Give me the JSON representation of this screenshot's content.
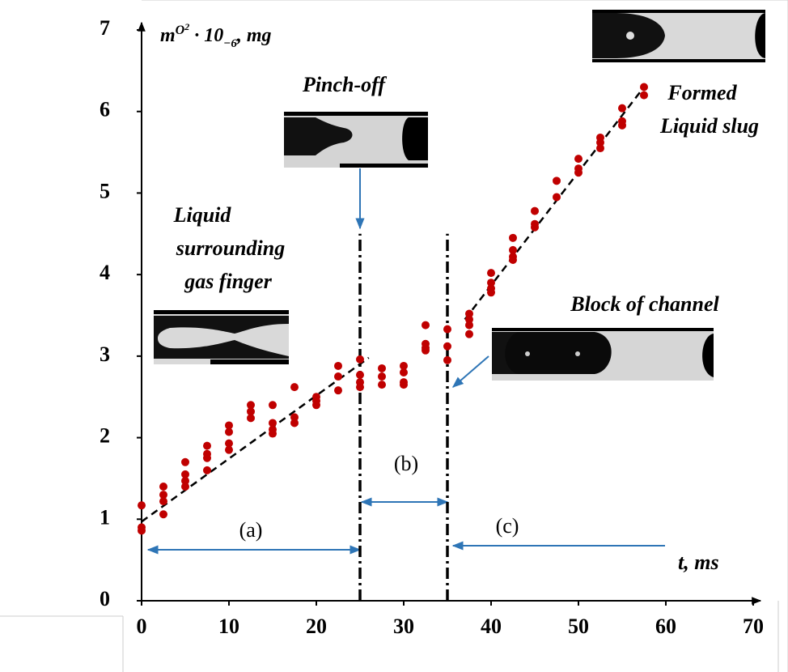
{
  "chart_data": {
    "type": "scatter",
    "ylabel_parts": [
      "m",
      "O",
      "2",
      " · 10",
      "−6",
      ", mg"
    ],
    "xlabel": "t, ms",
    "color": "#c00000",
    "x": [
      0,
      0,
      0,
      2.5,
      2.5,
      2.5,
      2.5,
      5,
      5,
      5,
      5,
      7.5,
      7.5,
      7.5,
      7.5,
      10,
      10,
      10,
      10,
      12.5,
      12.5,
      12.5,
      15,
      15,
      15,
      15,
      17.5,
      17.5,
      17.5,
      20,
      20,
      20,
      22.5,
      22.5,
      22.5,
      25,
      25,
      25,
      25,
      27.5,
      27.5,
      27.5,
      30,
      30,
      30,
      30,
      32.5,
      32.5,
      32.5,
      32.5,
      35,
      35,
      35,
      37.5,
      37.5,
      37.5,
      37.5,
      40,
      40,
      40,
      40,
      42.5,
      42.5,
      42.5,
      42.5,
      45,
      45,
      45,
      47.5,
      47.5,
      50,
      50,
      50,
      52.5,
      52.5,
      52.5,
      55,
      55,
      55,
      57.5,
      57.5
    ],
    "values": [
      1.17,
      0.9,
      0.86,
      1.4,
      1.3,
      1.22,
      1.06,
      1.7,
      1.55,
      1.47,
      1.4,
      1.9,
      1.8,
      1.75,
      1.6,
      2.15,
      2.07,
      1.93,
      1.85,
      2.4,
      2.32,
      2.24,
      2.4,
      2.18,
      2.1,
      2.05,
      2.62,
      2.25,
      2.18,
      2.5,
      2.45,
      2.4,
      2.88,
      2.75,
      2.58,
      2.96,
      2.77,
      2.68,
      2.62,
      2.85,
      2.75,
      2.65,
      2.88,
      2.8,
      2.68,
      2.65,
      3.38,
      3.15,
      3.1,
      3.07,
      3.33,
      3.12,
      2.95,
      3.52,
      3.45,
      3.38,
      3.27,
      4.02,
      3.9,
      3.83,
      3.78,
      4.45,
      4.3,
      4.22,
      4.18,
      4.78,
      4.62,
      4.58,
      5.15,
      4.95,
      5.42,
      5.3,
      5.25,
      5.68,
      5.62,
      5.55,
      6.04,
      5.88,
      5.83,
      6.3,
      6.2
    ],
    "fit_lines": [
      {
        "x": [
          0,
          26
        ],
        "y": [
          0.97,
          2.98
        ]
      },
      {
        "x": [
          37,
          57.5
        ],
        "y": [
          3.45,
          6.3
        ]
      }
    ],
    "vlines": [
      {
        "x": 25,
        "y": [
          0,
          4.5
        ]
      },
      {
        "x": 35,
        "y": [
          0,
          4.5
        ]
      }
    ],
    "xlim": [
      0,
      70
    ],
    "ylim": [
      0,
      7
    ],
    "xticks": [
      0,
      10,
      20,
      30,
      40,
      50,
      60,
      70
    ],
    "yticks": [
      0,
      1,
      2,
      3,
      4,
      5,
      6,
      7
    ],
    "annotations": {
      "pinch": "Pinch-off",
      "liquid": [
        "Liquid",
        "surrounding",
        "gas finger"
      ],
      "block": "Block of channel",
      "formed": [
        "Formed",
        "Liquid slug"
      ],
      "a": "(a)",
      "b": "(b)",
      "c": "(c)"
    }
  }
}
